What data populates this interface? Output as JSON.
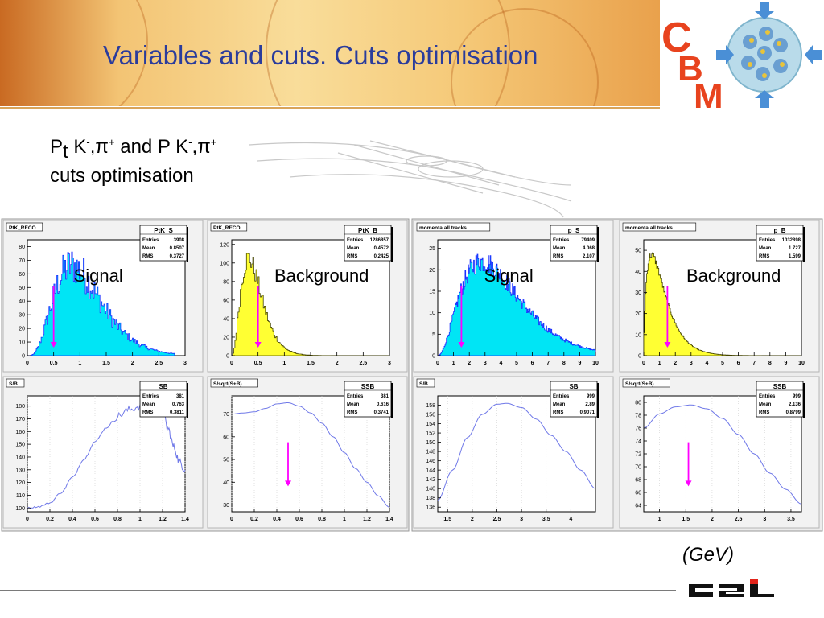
{
  "slide": {
    "title": "Variables and cuts. Cuts optimisation",
    "subtitle_line1": {
      "pt": "P",
      "t": "t",
      "k": " K",
      "minus": "-",
      "comma_pi": ",π",
      "plus": "+",
      "and": " and P K",
      "minus2": "-",
      "comma_pi2": ",π",
      "plus2": "+"
    },
    "subtitle_line2": "cuts optimisation",
    "unit_note": "(GeV)",
    "logo_text": "CBM",
    "footer_logo": "GSI"
  },
  "colors": {
    "title": "#2a3c9c",
    "signal_fill": "#00e5f5",
    "signal_line": "#1a2cff",
    "background_fill": "#ffff33",
    "background_line": "#444400",
    "curve": "#6f78e8",
    "cut_arrow": "#ff00ff",
    "canvas_bg": "#ececec",
    "pad_bg": "#f2f2f2"
  },
  "chart_data": [
    {
      "type": "bar",
      "canvas_label": "PtK_RECO",
      "stats": {
        "name": "PtK_S",
        "rows": [
          [
            "Entries",
            "3908"
          ],
          [
            "Mean",
            "0.8507"
          ],
          [
            "RMS",
            "0.3727"
          ]
        ]
      },
      "overlay_label": "Signal",
      "style": "signal",
      "xlim": [
        0,
        3
      ],
      "ylim": [
        0,
        85
      ],
      "xticks": [
        0,
        0.5,
        1,
        1.5,
        2,
        2.5,
        3
      ],
      "xtick_labels": [
        "0",
        "0.5",
        "1",
        "1.5",
        "2",
        "2.5",
        "3"
      ],
      "yticks": [
        0,
        10,
        20,
        30,
        40,
        50,
        60,
        70,
        80
      ],
      "cut": 0.5,
      "shape": {
        "kind": "gamma",
        "peak_x": 0.85,
        "peak_y": 66,
        "k": 4.5,
        "x_max": 2.8,
        "noise": 0.22,
        "bins": 150
      }
    },
    {
      "type": "bar",
      "canvas_label": "PtK_RECO",
      "stats": {
        "name": "PtK_B",
        "rows": [
          [
            "Entries",
            "1286857"
          ],
          [
            "Mean",
            "0.4572"
          ],
          [
            "RMS",
            "0.2425"
          ]
        ]
      },
      "overlay_label": "Background",
      "style": "background",
      "xlim": [
        0,
        3
      ],
      "ylim": [
        0,
        125
      ],
      "xticks": [
        0,
        0.5,
        1,
        1.5,
        2,
        2.5,
        3
      ],
      "xtick_labels": [
        "0",
        "0.5",
        "1",
        "1.5",
        "2",
        "2.5",
        "3"
      ],
      "yticks": [
        0,
        20,
        40,
        60,
        80,
        100,
        120
      ],
      "cut": 0.5,
      "shape": {
        "kind": "gamma",
        "peak_x": 0.32,
        "peak_y": 105,
        "k": 3.5,
        "x_max": 3.0,
        "noise": 0.12,
        "bins": 150
      }
    },
    {
      "type": "bar",
      "canvas_label": "momenta all tracks",
      "stats": {
        "name": "p_S",
        "rows": [
          [
            "Entries",
            "79409"
          ],
          [
            "Mean",
            "4.068"
          ],
          [
            "RMS",
            "2.107"
          ]
        ]
      },
      "overlay_label": "Signal",
      "style": "signal",
      "xlim": [
        0,
        10
      ],
      "ylim": [
        0,
        27
      ],
      "xticks": [
        0,
        1,
        2,
        3,
        4,
        5,
        6,
        7,
        8,
        9,
        10
      ],
      "xtick_labels": [
        "0",
        "1",
        "2",
        "3",
        "4",
        "5",
        "6",
        "7",
        "8",
        "9",
        "10"
      ],
      "yticks": [
        0,
        5,
        10,
        15,
        20,
        25
      ],
      "cut": 1.5,
      "shape": {
        "kind": "gamma",
        "peak_x": 2.8,
        "peak_y": 22,
        "k": 3.2,
        "x_max": 10,
        "noise": 0.12,
        "bins": 220
      }
    },
    {
      "type": "bar",
      "canvas_label": "momenta all tracks",
      "stats": {
        "name": "p_B",
        "rows": [
          [
            "Entries",
            "1032898"
          ],
          [
            "Mean",
            "1.727"
          ],
          [
            "RMS",
            "1.599"
          ]
        ]
      },
      "overlay_label": "Background",
      "style": "background",
      "xlim": [
        0,
        10
      ],
      "ylim": [
        0,
        55
      ],
      "xticks": [
        0,
        1,
        2,
        3,
        4,
        5,
        6,
        7,
        8,
        9,
        10
      ],
      "xtick_labels": [
        "0",
        "1",
        "2",
        "3",
        "4",
        "5",
        "6",
        "7",
        "8",
        "9",
        "10"
      ],
      "yticks": [
        0,
        10,
        20,
        30,
        40,
        50
      ],
      "cut": 1.5,
      "shape": {
        "kind": "gamma",
        "peak_x": 0.5,
        "peak_y": 48,
        "k": 1.7,
        "x_max": 10,
        "noise": 0.04,
        "bins": 220
      }
    },
    {
      "type": "line",
      "canvas_label": "S/B",
      "stats": {
        "name": "SB",
        "rows": [
          [
            "Entries",
            "381"
          ],
          [
            "Mean",
            "0.763"
          ],
          [
            "RMS",
            "0.3811"
          ]
        ]
      },
      "style": "curve",
      "xlim": [
        0,
        1.4
      ],
      "ylim": [
        97,
        188
      ],
      "xticks": [
        0,
        0.2,
        0.4,
        0.6,
        0.8,
        1,
        1.2,
        1.4
      ],
      "xtick_labels": [
        "0",
        "0.2",
        "0.4",
        "0.6",
        "0.8",
        "1",
        "1.2",
        "1.4"
      ],
      "yticks": [
        100,
        110,
        120,
        130,
        140,
        150,
        160,
        170,
        180
      ],
      "cut": null,
      "x": [
        0,
        0.1,
        0.2,
        0.3,
        0.4,
        0.5,
        0.6,
        0.7,
        0.8,
        0.9,
        1.0,
        1.1,
        1.15,
        1.2,
        1.25,
        1.3,
        1.35,
        1.4
      ],
      "y": [
        100,
        101,
        104,
        112,
        124,
        138,
        152,
        163,
        172,
        177,
        180,
        181,
        180,
        176,
        162,
        148,
        136,
        130
      ],
      "noise": 3.0
    },
    {
      "type": "line",
      "canvas_label": "S/sqrt(S+B)",
      "stats": {
        "name": "SSB",
        "rows": [
          [
            "Entries",
            "381"
          ],
          [
            "Mean",
            "0.616"
          ],
          [
            "RMS",
            "0.3741"
          ]
        ]
      },
      "style": "curve",
      "xlim": [
        0,
        1.4
      ],
      "ylim": [
        27,
        78
      ],
      "xticks": [
        0,
        0.2,
        0.4,
        0.6,
        0.8,
        1,
        1.2,
        1.4
      ],
      "xtick_labels": [
        "0",
        "0.2",
        "0.4",
        "0.6",
        "0.8",
        "1",
        "1.2",
        "1.4"
      ],
      "yticks": [
        30,
        40,
        50,
        60,
        70
      ],
      "cut": 0.5,
      "x": [
        0,
        0.1,
        0.2,
        0.3,
        0.4,
        0.5,
        0.6,
        0.7,
        0.8,
        0.9,
        1.0,
        1.1,
        1.2,
        1.3,
        1.4
      ],
      "y": [
        70,
        70.5,
        71,
        72.5,
        74.5,
        75,
        73.5,
        70.5,
        66,
        60,
        53,
        46,
        40,
        34,
        29
      ],
      "noise": 0.0
    },
    {
      "type": "line",
      "canvas_label": "S/B",
      "stats": {
        "name": "SB",
        "rows": [
          [
            "Entries",
            "999"
          ],
          [
            "Mean",
            "2.89"
          ],
          [
            "RMS",
            "0.9071"
          ]
        ]
      },
      "style": "curve",
      "xlim": [
        1.3,
        4.5
      ],
      "ylim": [
        135,
        160
      ],
      "xticks": [
        1.5,
        2,
        2.5,
        3,
        3.5,
        4
      ],
      "xtick_labels": [
        "1.5",
        "2",
        "2.5",
        "3",
        "3.5",
        "4"
      ],
      "yticks": [
        136,
        138,
        140,
        142,
        144,
        146,
        148,
        150,
        152,
        154,
        156,
        158
      ],
      "cut": null,
      "x": [
        1.3,
        1.6,
        1.9,
        2.2,
        2.5,
        2.7,
        3.0,
        3.3,
        3.6,
        3.9,
        4.2,
        4.5
      ],
      "y": [
        137.5,
        144,
        151,
        156,
        158.2,
        158.4,
        157.5,
        155,
        151.5,
        148,
        144,
        140
      ],
      "noise": 0.0
    },
    {
      "type": "line",
      "canvas_label": "S/sqrt(S+B)",
      "stats": {
        "name": "SSB",
        "rows": [
          [
            "Entries",
            "999"
          ],
          [
            "Mean",
            "2.136"
          ],
          [
            "RMS",
            "0.8799"
          ]
        ]
      },
      "style": "curve",
      "xlim": [
        0.7,
        3.7
      ],
      "ylim": [
        63,
        81
      ],
      "xticks": [
        1,
        1.5,
        2,
        2.5,
        3,
        3.5
      ],
      "xtick_labels": [
        "1",
        "1.5",
        "2",
        "2.5",
        "3",
        "3.5"
      ],
      "yticks": [
        64,
        66,
        68,
        70,
        72,
        74,
        76,
        78,
        80
      ],
      "cut": 1.55,
      "x": [
        0.7,
        1.0,
        1.3,
        1.6,
        1.9,
        2.2,
        2.5,
        2.8,
        3.1,
        3.4,
        3.7
      ],
      "y": [
        76,
        78.2,
        79.3,
        79.6,
        79,
        77.5,
        75,
        72,
        69,
        66.5,
        64.2
      ],
      "noise": 0.0
    }
  ]
}
